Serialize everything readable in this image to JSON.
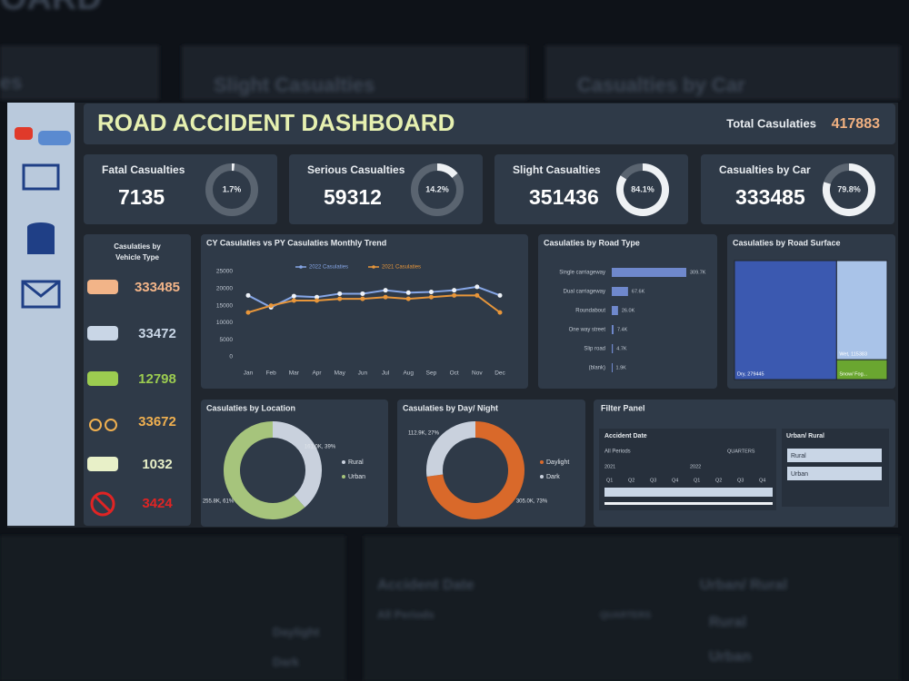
{
  "background": {
    "texts": [
      "OARD",
      "es",
      "Slight Casualties",
      "Casualties by Car",
      "Accident Date",
      "All Periods",
      "QUARTERS",
      "Urban/ Rural",
      "Rural",
      "Urban",
      "Daylight",
      "Dark"
    ]
  },
  "header": {
    "title": "ROAD ACCIDENT DASHBOARD",
    "total_label": "Total Casulaties",
    "total_value": 417883
  },
  "kpis": [
    {
      "label": "Fatal Casualties",
      "value": 7135,
      "pct": 1.7,
      "pct_label": "1.7%"
    },
    {
      "label": "Serious Casualties",
      "value": 59312,
      "pct": 14.2,
      "pct_label": "14.2%"
    },
    {
      "label": "Slight Casualties",
      "value": 351436,
      "pct": 84.1,
      "pct_label": "84.1%"
    },
    {
      "label": "Casualties by Car",
      "value": 333485,
      "pct": 79.8,
      "pct_label": "79.8%"
    }
  ],
  "vehicles": {
    "title_lines": [
      "Casulaties by",
      "Vehicle Type"
    ],
    "values": [
      333485,
      33472,
      12798,
      33672,
      1032,
      3424
    ],
    "colors": [
      "#f2b488",
      "#c9d6e6",
      "#9ccc50",
      "#f0b050",
      "#e8f0c8",
      "#e02424"
    ]
  },
  "chart_data": [
    {
      "type": "line",
      "title": "CY Casulaties vs PY Casulaties Monthly Trend",
      "categories": [
        "Jan",
        "Feb",
        "Mar",
        "Apr",
        "May",
        "Jun",
        "Jul",
        "Aug",
        "Sep",
        "Oct",
        "Nov",
        "Dec"
      ],
      "series": [
        {
          "name": "2022 Casulaties",
          "color": "#86a6e6",
          "values": [
            18000,
            14500,
            17800,
            17500,
            18500,
            18500,
            19500,
            18800,
            19000,
            19500,
            20500,
            18000
          ]
        },
        {
          "name": "2021 Casulaties",
          "color": "#e8963a",
          "values": [
            13000,
            15000,
            16500,
            16500,
            17000,
            17000,
            17500,
            17000,
            17500,
            18000,
            18000,
            13000
          ]
        }
      ],
      "ylim": [
        0,
        25000
      ],
      "yticks": [
        0,
        5000,
        10000,
        15000,
        20000,
        25000
      ],
      "grid": false
    },
    {
      "type": "bar",
      "title": "Casulaties by Road Type",
      "orientation": "horizontal",
      "color": "#6f88cc",
      "categories": [
        "Single carriageway",
        "Dual carriageway",
        "Roundabout",
        "One way street",
        "Slip road",
        "(blank)"
      ],
      "values": [
        309700,
        67600,
        26000,
        7400,
        4700,
        1900
      ],
      "value_labels": [
        "309.7K",
        "67.6K",
        "26.0K",
        "7.4K",
        "4.7K",
        "1.9K"
      ]
    },
    {
      "type": "treemap",
      "title": "Casulaties by Road Surface",
      "labels": [
        "Dry, 279445",
        "Wet, 115383",
        "Snow/ Fog..."
      ],
      "values": [
        279445,
        115383,
        23055
      ],
      "colors": [
        "#3b59b0",
        "#a9c3e8",
        "#6aa630"
      ]
    },
    {
      "type": "donut",
      "title": "Casulaties by Location",
      "categories": [
        "Rural",
        "Urban"
      ],
      "values": [
        161000,
        255800
      ],
      "value_labels": [
        "161.0K, 39%",
        "255.8K, 61%"
      ],
      "colors": [
        "#c9d1dd",
        "#a6c47c"
      ]
    },
    {
      "type": "donut",
      "title": "Casulaties by Day/ Night",
      "categories": [
        "Daylight",
        "Dark"
      ],
      "values": [
        305000,
        112900
      ],
      "value_labels": [
        "305.0K, 73%",
        "112.9K, 27%"
      ],
      "colors": [
        "#d9692a",
        "#c9d1dd"
      ]
    }
  ],
  "filter": {
    "title": "Filter Panel",
    "date_label": "Accident Date",
    "period": "All Periods",
    "granularity": "QUARTERS",
    "years": [
      "2021",
      "2022"
    ],
    "quarters": [
      "Q1",
      "Q2",
      "Q3",
      "Q4",
      "Q1",
      "Q2",
      "Q3",
      "Q4"
    ],
    "area_label": "Urban/ Rural",
    "options": [
      "Rural",
      "Urban"
    ]
  }
}
